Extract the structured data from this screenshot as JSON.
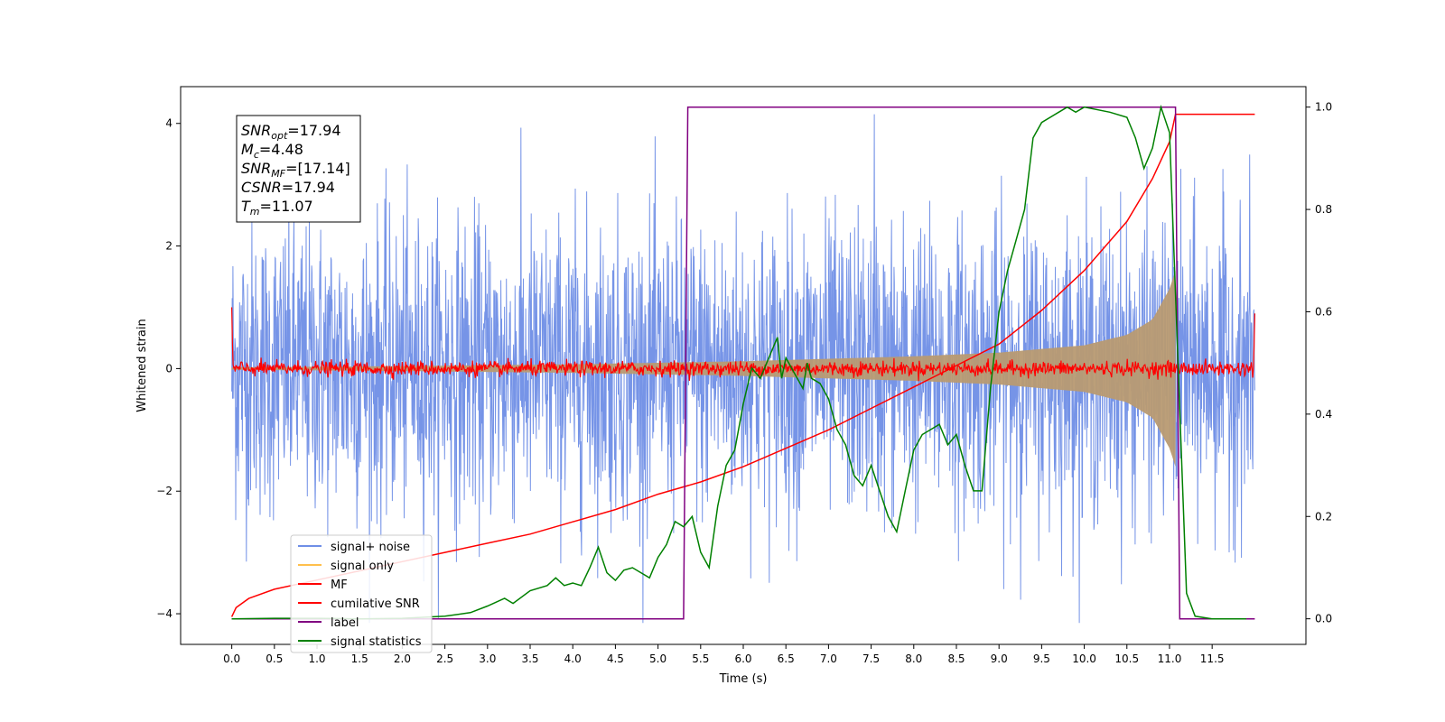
{
  "chart_data": {
    "type": "line",
    "xlabel": "Time (s)",
    "ylabel": "Whitened strain",
    "xlim": [
      -0.6,
      12.6
    ],
    "ylim": [
      -4.5,
      4.6
    ],
    "y2lim": [
      -0.05,
      1.04
    ],
    "x_ticks": [
      0.0,
      0.5,
      1.0,
      1.5,
      2.0,
      2.5,
      3.0,
      3.5,
      4.0,
      4.5,
      5.0,
      5.5,
      6.0,
      6.5,
      7.0,
      7.5,
      8.0,
      8.5,
      9.0,
      9.5,
      10.0,
      10.5,
      11.0,
      11.5
    ],
    "x_tick_labels": [
      "0.0",
      "0.5",
      "1.0",
      "1.5",
      "2.0",
      "2.5",
      "3.0",
      "3.5",
      "4.0",
      "4.5",
      "5.0",
      "5.5",
      "6.0",
      "6.5",
      "7.0",
      "7.5",
      "8.0",
      "8.5",
      "9.0",
      "9.5",
      "10.0",
      "10.5",
      "11.0",
      "11.5"
    ],
    "y_ticks": [
      -4,
      -2,
      0,
      2,
      4
    ],
    "y_tick_labels": [
      "−4",
      "−2",
      "0",
      "2",
      "4"
    ],
    "y2_ticks": [
      0.0,
      0.2,
      0.4,
      0.6,
      0.8,
      1.0
    ],
    "y2_tick_labels": [
      "0.0",
      "0.2",
      "0.4",
      "0.6",
      "0.8",
      "1.0"
    ],
    "grid": false,
    "legend_placement": "lower-left",
    "info_box": {
      "lines": [
        {
          "main": "SNR",
          "sub": "opt",
          "rest": "=17.94"
        },
        {
          "main": "M",
          "sub": "c",
          "rest": "=4.48"
        },
        {
          "main": "SNR",
          "sub": "MF",
          "rest": "=[17.14]"
        },
        {
          "main": "CSNR",
          "sub": "",
          "rest": "=17.94"
        },
        {
          "main": "T",
          "sub": "m",
          "rest": "=11.07"
        }
      ]
    },
    "series": [
      {
        "name": "signal+ noise",
        "color": "#6f8ee6",
        "kind": "noise",
        "x_range": [
          0.0,
          12.0
        ],
        "center": 0.0,
        "amplitude": 1.2,
        "peak": 4.15
      },
      {
        "name": "signal only",
        "color": "#ffc04d",
        "kind": "chirp-envelope",
        "x_range": [
          0.0,
          11.07
        ],
        "envelope": {
          "x": [
            0.0,
            2.0,
            4.0,
            6.0,
            8.0,
            9.0,
            10.0,
            10.5,
            10.8,
            11.0,
            11.07
          ],
          "y": [
            0.02,
            0.04,
            0.07,
            0.12,
            0.2,
            0.26,
            0.38,
            0.55,
            0.8,
            1.3,
            1.6
          ]
        }
      },
      {
        "name": "MF",
        "color": "#ff0000",
        "kind": "noise",
        "x_range": [
          0.0,
          12.0
        ],
        "center": 0.0,
        "amplitude": 0.06,
        "start_value": 1.0,
        "end_value": 0.9
      },
      {
        "name": "cumilative SNR",
        "color": "#ff0000",
        "kind": "line",
        "axis": "left",
        "x": [
          0.0,
          0.05,
          0.2,
          0.5,
          1.0,
          1.5,
          2.0,
          2.5,
          3.0,
          3.5,
          4.0,
          4.5,
          5.0,
          5.5,
          6.0,
          6.5,
          7.0,
          7.5,
          8.0,
          8.5,
          9.0,
          9.5,
          10.0,
          10.5,
          10.8,
          11.0,
          11.07,
          11.5,
          12.0
        ],
        "y": [
          -4.05,
          -3.9,
          -3.75,
          -3.6,
          -3.45,
          -3.3,
          -3.15,
          -3.0,
          -2.85,
          -2.7,
          -2.5,
          -2.3,
          -2.05,
          -1.85,
          -1.6,
          -1.3,
          -1.0,
          -0.65,
          -0.3,
          0.05,
          0.4,
          0.95,
          1.6,
          2.4,
          3.1,
          3.7,
          4.15,
          4.15,
          4.15
        ]
      },
      {
        "name": "label",
        "color": "#800080",
        "kind": "line",
        "axis": "right",
        "x": [
          0.0,
          5.3,
          5.35,
          11.07,
          11.12,
          12.0
        ],
        "y": [
          0.0,
          0.0,
          1.0,
          1.0,
          0.0,
          0.0
        ]
      },
      {
        "name": "signal statistics",
        "color": "#008000",
        "kind": "line",
        "axis": "right",
        "x": [
          0.0,
          0.5,
          1.0,
          1.5,
          2.0,
          2.5,
          2.8,
          3.0,
          3.2,
          3.3,
          3.5,
          3.7,
          3.8,
          3.9,
          4.0,
          4.1,
          4.2,
          4.3,
          4.4,
          4.5,
          4.6,
          4.7,
          4.8,
          4.9,
          5.0,
          5.1,
          5.2,
          5.3,
          5.4,
          5.5,
          5.6,
          5.7,
          5.8,
          5.9,
          6.0,
          6.1,
          6.2,
          6.3,
          6.4,
          6.45,
          6.5,
          6.6,
          6.7,
          6.75,
          6.8,
          6.9,
          7.0,
          7.1,
          7.2,
          7.3,
          7.4,
          7.5,
          7.6,
          7.7,
          7.8,
          7.9,
          8.0,
          8.1,
          8.2,
          8.3,
          8.4,
          8.5,
          8.6,
          8.7,
          8.8,
          8.9,
          9.0,
          9.1,
          9.2,
          9.3,
          9.4,
          9.5,
          9.7,
          9.8,
          9.9,
          10.0,
          10.3,
          10.5,
          10.6,
          10.7,
          10.8,
          10.9,
          11.0,
          11.1,
          11.2,
          11.3,
          11.5,
          11.9
        ],
        "y": [
          0.0,
          0.001,
          0.001,
          0.0,
          0.001,
          0.005,
          0.012,
          0.025,
          0.04,
          0.03,
          0.055,
          0.065,
          0.08,
          0.065,
          0.07,
          0.065,
          0.1,
          0.14,
          0.09,
          0.075,
          0.095,
          0.1,
          0.09,
          0.08,
          0.12,
          0.145,
          0.19,
          0.18,
          0.2,
          0.13,
          0.1,
          0.22,
          0.3,
          0.33,
          0.42,
          0.49,
          0.47,
          0.51,
          0.55,
          0.47,
          0.51,
          0.48,
          0.45,
          0.5,
          0.47,
          0.46,
          0.43,
          0.37,
          0.34,
          0.28,
          0.26,
          0.3,
          0.25,
          0.2,
          0.17,
          0.25,
          0.33,
          0.36,
          0.37,
          0.38,
          0.34,
          0.36,
          0.3,
          0.25,
          0.25,
          0.45,
          0.6,
          0.68,
          0.74,
          0.8,
          0.94,
          0.97,
          0.99,
          1.0,
          0.99,
          1.0,
          0.99,
          0.98,
          0.94,
          0.88,
          0.92,
          1.0,
          0.95,
          0.5,
          0.05,
          0.005,
          0.0,
          0.0
        ]
      }
    ]
  }
}
